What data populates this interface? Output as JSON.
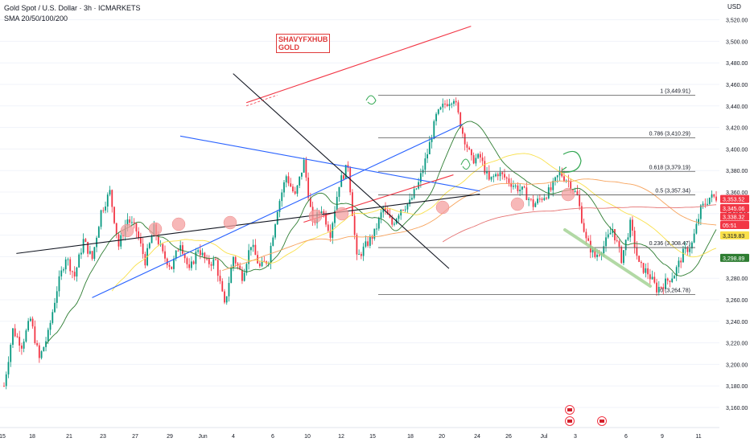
{
  "header": {
    "symbol_line": "Gold Spot / U.S. Dollar · 3h · ICMARKETS",
    "indicator_line": "SMA 20/50/100/200",
    "currency": "USD"
  },
  "watermark": {
    "line1": "SHAVYFXHUB",
    "line2": "GOLD"
  },
  "colors": {
    "up": "#089981",
    "down": "#f23645",
    "red_line": "#f23645",
    "blue_line": "#2962ff",
    "black_line": "#131722",
    "sma20": "#2e7d32",
    "sma50": "#f9e04b",
    "sma100": "#f7a35c",
    "sma200": "#e57373",
    "fib": "#555555",
    "highlight": "#f4a0a0",
    "green_arrow": "#9fcf8f",
    "green_mark": "#34a853"
  },
  "chart_data": {
    "type": "candlestick",
    "symbol": "Gold Spot / U.S. Dollar",
    "timeframe": "3h",
    "indicators": [
      "SMA 20",
      "SMA 50",
      "SMA 100",
      "SMA 200"
    ],
    "x_tick_labels": [
      "15",
      "18",
      "21",
      "23",
      "27",
      "29",
      "Jun",
      "4",
      "6",
      "10",
      "12",
      "15",
      "18",
      "20",
      "24",
      "26",
      "Jul",
      "3",
      "6",
      "9",
      "11"
    ],
    "y_ticks": [
      3160,
      3180,
      3200,
      3220,
      3240,
      3260,
      3280,
      3300,
      3320,
      3340,
      3360,
      3380,
      3400,
      3420,
      3440,
      3460,
      3480,
      3500,
      3520
    ],
    "y_tick_labels": [
      "3,160.00",
      "3,180.00",
      "3,200.00",
      "3,220.00",
      "3,240.00",
      "3,260.00",
      "3,280.00",
      "3,300.00",
      "3,320.00",
      "3,340.00",
      "3,360.00",
      "3,380.00",
      "3,400.00",
      "3,420.00",
      "3,440.00",
      "3,460.00",
      "3,480.00",
      "3,500.00",
      "3,520.00"
    ],
    "ylim": [
      3150,
      3530
    ],
    "closes": [
      3180,
      3232,
      3218,
      3242,
      3205,
      3228,
      3270,
      3300,
      3282,
      3315,
      3298,
      3342,
      3360,
      3310,
      3335,
      3324,
      3296,
      3326,
      3302,
      3290,
      3314,
      3286,
      3308,
      3294,
      3296,
      3254,
      3300,
      3282,
      3312,
      3290,
      3298,
      3345,
      3375,
      3356,
      3388,
      3330,
      3345,
      3322,
      3368,
      3385,
      3298,
      3310,
      3322,
      3345,
      3330,
      3345,
      3350,
      3368,
      3396,
      3430,
      3442,
      3448,
      3415,
      3390,
      3392,
      3370,
      3378,
      3372,
      3365,
      3360,
      3348,
      3355,
      3362,
      3378,
      3370,
      3356,
      3315,
      3300,
      3310,
      3326,
      3298,
      3330,
      3292,
      3285,
      3270,
      3276,
      3284,
      3303,
      3312,
      3344,
      3355
    ],
    "fib_levels": [
      {
        "label": "1 (3,449.91)",
        "value": 3449.91
      },
      {
        "label": "0.786 (3,410.29)",
        "value": 3410.29
      },
      {
        "label": "0.618 (3,379.19)",
        "value": 3379.19
      },
      {
        "label": "0.5 (3,357.34)",
        "value": 3357.34
      },
      {
        "label": "0.236 (3,308.47)",
        "value": 3308.47
      },
      {
        "label": "0 (3,264.78)",
        "value": 3264.78
      }
    ],
    "price_tags": [
      {
        "label": "3,353.52",
        "value": 3353.52,
        "bg": "#f23645",
        "fg": "#ffffff"
      },
      {
        "label": "3,345.06",
        "value": 3345.06,
        "bg": "#f23645",
        "fg": "#ffffff"
      },
      {
        "label": "3,338.32",
        "value": 3338.32,
        "bg": "#f23645",
        "fg": "#ffffff"
      },
      {
        "label": "05:51",
        "value": 3331.9,
        "bg": "#f23645",
        "fg": "#ffffff"
      },
      {
        "label": "3,319.83",
        "value": 3319.83,
        "bg": "#f9e04b",
        "fg": "#131722"
      },
      {
        "label": "3,298.89",
        "value": 3298.89,
        "bg": "#2e7d32",
        "fg": "#ffffff"
      }
    ],
    "trendlines": [
      {
        "name": "red-channel-upper",
        "from": [
          27.5,
          3443
        ],
        "to": [
          53,
          3514
        ]
      },
      {
        "name": "red-channel-lower",
        "from": [
          34,
          3332
        ],
        "to": [
          51,
          3376
        ]
      },
      {
        "name": "blue-support",
        "from": [
          10,
          3262
        ],
        "to": [
          52,
          3423
        ]
      },
      {
        "name": "blue-resistance",
        "from": [
          20,
          3412
        ],
        "to": [
          54,
          3361
        ]
      },
      {
        "name": "black-neckline",
        "from": [
          1.4,
          3303
        ],
        "to": [
          54,
          3358
        ]
      },
      {
        "name": "black-downtrend",
        "from": [
          26,
          3470
        ],
        "to": [
          50.5,
          3289
        ]
      }
    ]
  }
}
